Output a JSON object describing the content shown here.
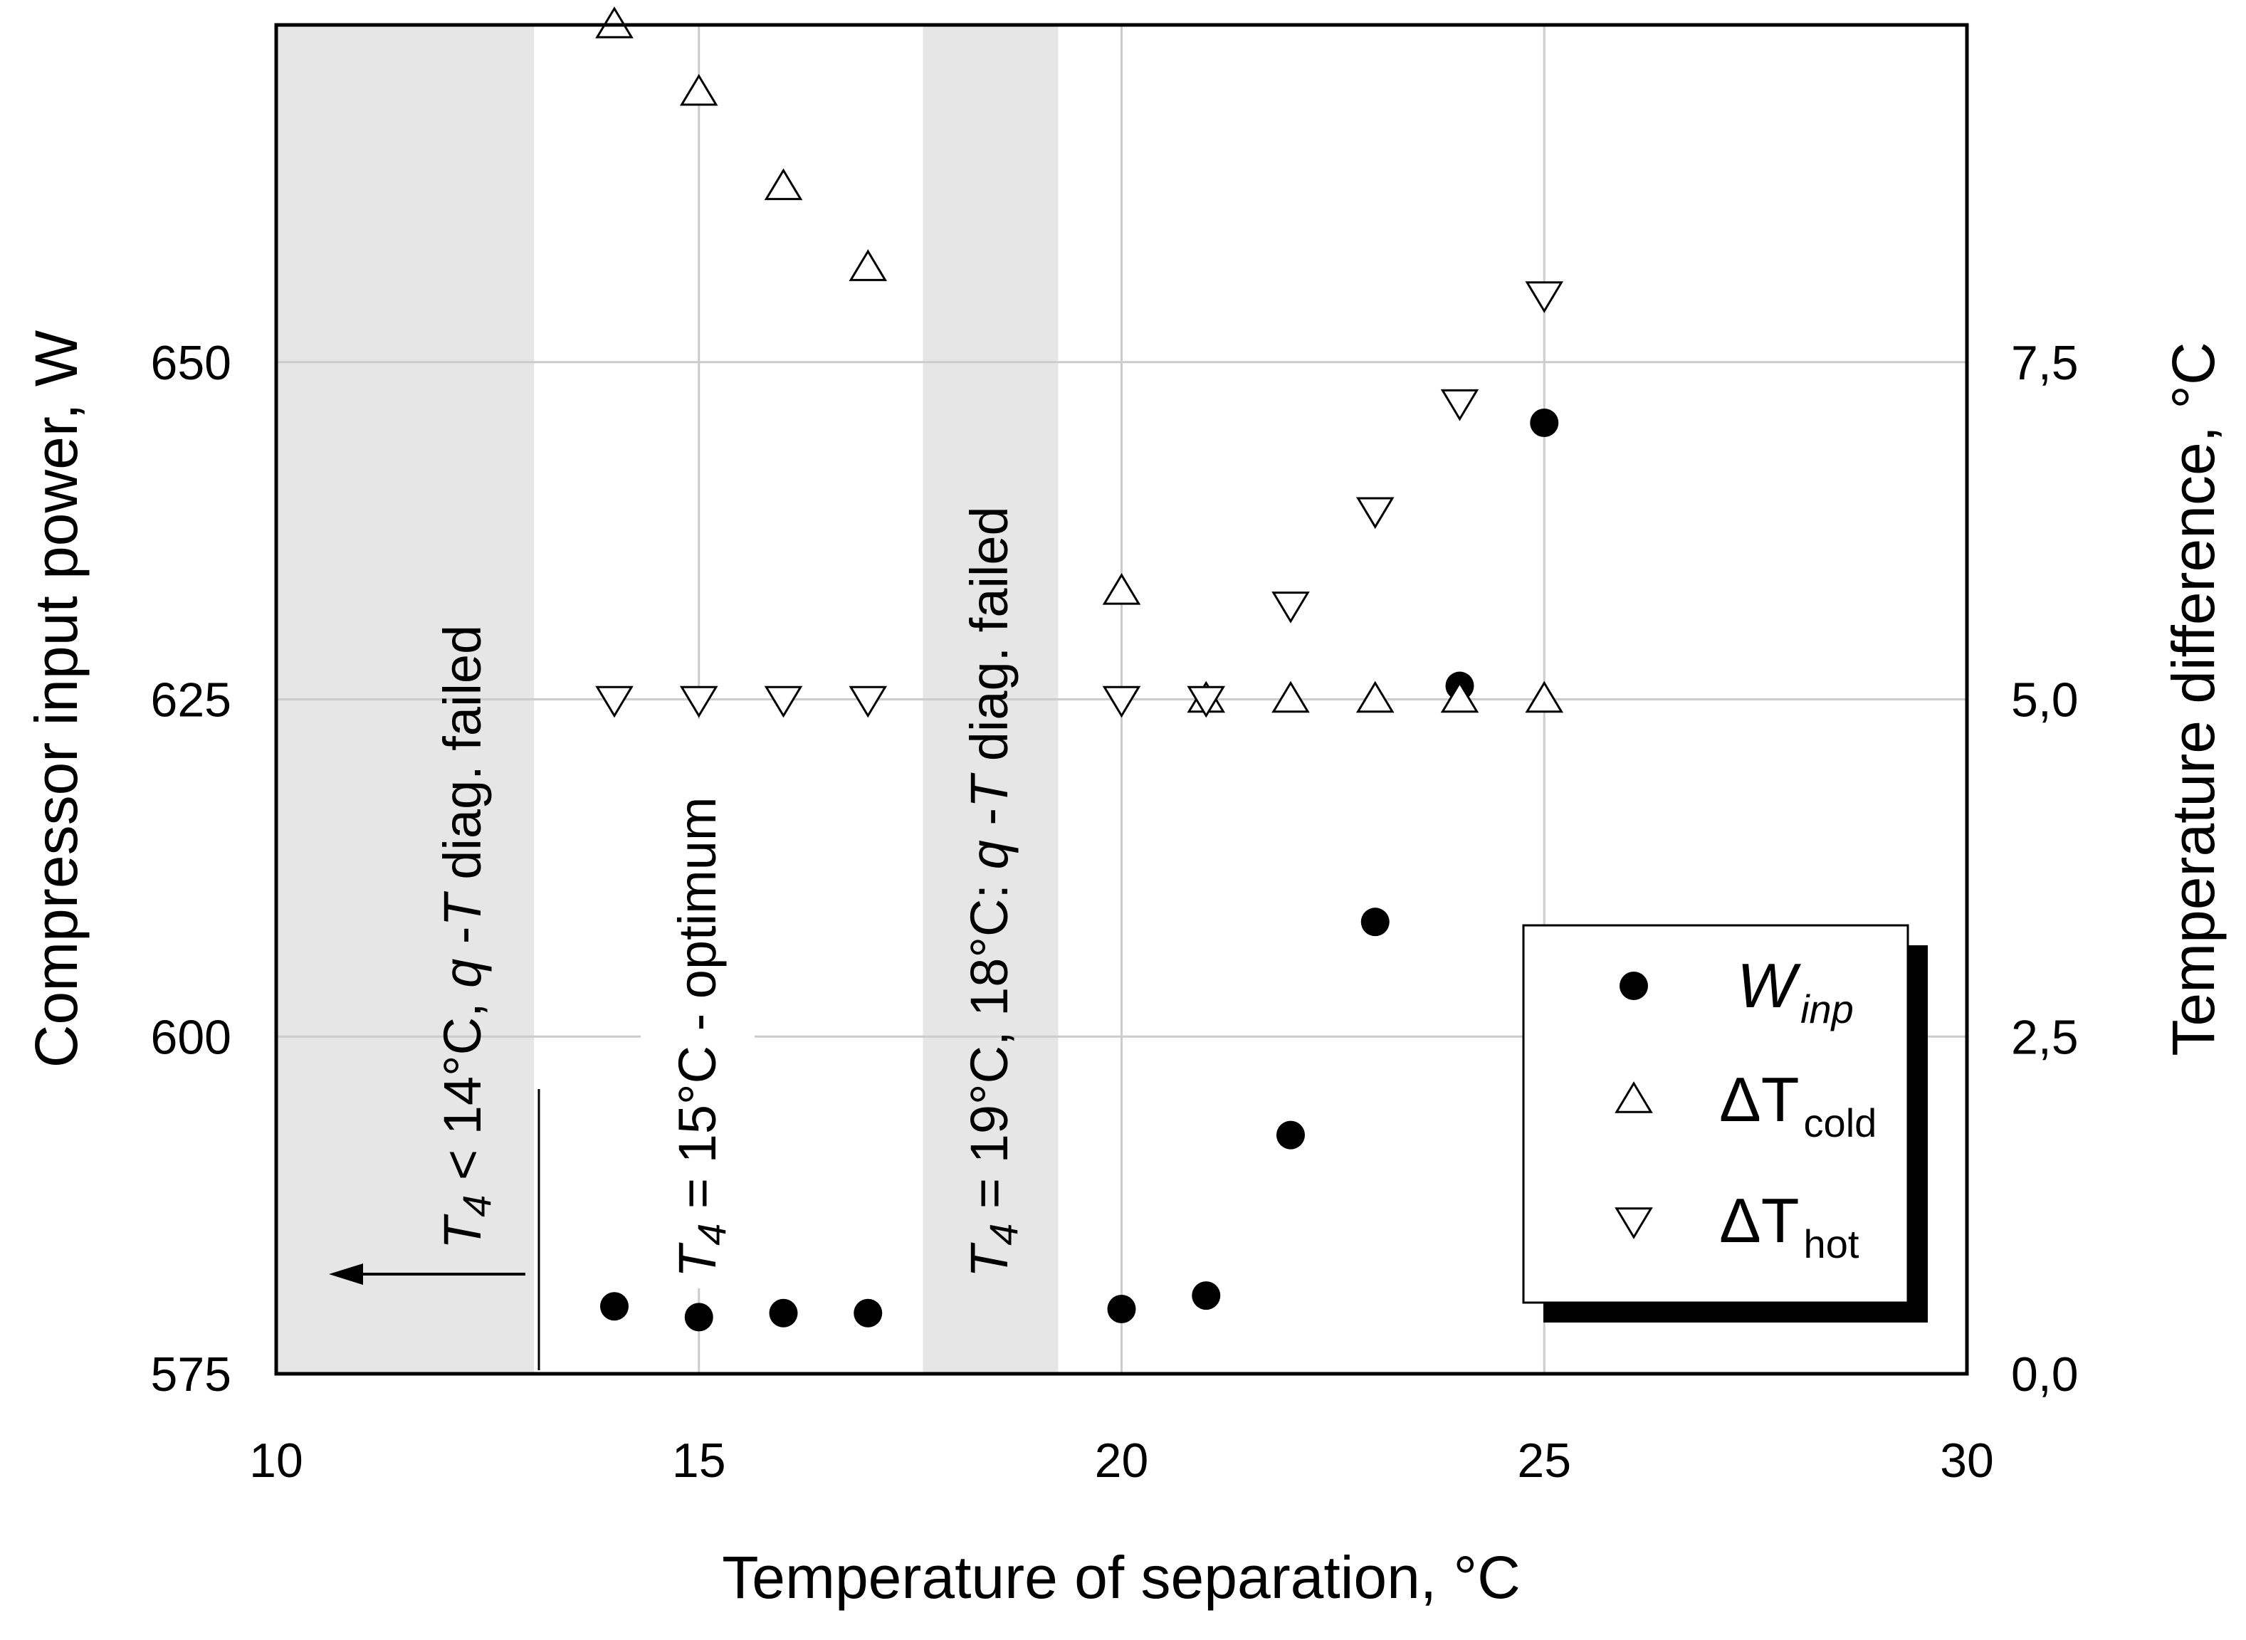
{
  "chart_data": {
    "type": "scatter",
    "xlabel": "Temperature of separation, °C",
    "ylabel_left": "Compressor input power, W",
    "ylabel_right": "Temperature difference, °C",
    "xlim": [
      10,
      30
    ],
    "ylim_left": [
      575,
      675
    ],
    "ylim_right": [
      0,
      10
    ],
    "x_ticks": [
      "10",
      "15",
      "20",
      "25",
      "30"
    ],
    "y_left_ticks": [
      "575",
      "600",
      "625",
      "650"
    ],
    "y_right_ticks": [
      "0,0",
      "2,5",
      "5,0",
      "7,5"
    ],
    "series": [
      {
        "name": "W_inp",
        "legend_main": "W",
        "legend_sub": "inp",
        "axis": "left",
        "marker": "filled-circle",
        "x": [
          14,
          15,
          16,
          17,
          20,
          21,
          22,
          23,
          24,
          25
        ],
        "y": [
          580.0,
          579.2,
          579.5,
          579.5,
          579.8,
          580.8,
          592.7,
          608.5,
          626.0,
          645.5
        ]
      },
      {
        "name": "ΔT_cold",
        "legend_main": "ΔT",
        "legend_sub": "cold",
        "axis": "right",
        "marker": "triangle-up",
        "x": [
          14,
          15,
          16,
          17,
          20,
          21,
          22,
          23,
          24,
          25
        ],
        "y": [
          10.0,
          9.5,
          8.8,
          8.2,
          5.8,
          5.0,
          5.0,
          5.0,
          5.0,
          5.0
        ]
      },
      {
        "name": "ΔT_hot",
        "legend_main": "ΔT",
        "legend_sub": "hot",
        "axis": "right",
        "marker": "triangle-down",
        "x": [
          14,
          15,
          16,
          17,
          20,
          21,
          22,
          23,
          24,
          25
        ],
        "y": [
          5.0,
          5.0,
          5.0,
          5.0,
          5.0,
          5.0,
          5.7,
          6.4,
          7.2,
          8.0
        ]
      }
    ],
    "shaded_regions": [
      {
        "from": 10,
        "to": 13.05,
        "color": "#e6e6e6"
      },
      {
        "from": 17.65,
        "to": 19.25,
        "color": "#e6e6e6"
      }
    ],
    "annotations": {
      "a1": {
        "prefix": "T",
        "sub": "4",
        "text": " < 14°C, ",
        "q": "q",
        "dash": " -",
        "Tb": "T",
        "rest": " diag. failed"
      },
      "a2": {
        "prefix": "T",
        "sub": "4",
        "text": " = 15°C - optimum"
      },
      "a3": {
        "prefix": "T",
        "sub": "4",
        "text": " = 19°C, 18°C: ",
        "q": "q",
        "dash": " -",
        "Tb": "T",
        "rest": " diag. failed"
      }
    },
    "grid": true,
    "legend_position": "lower-right"
  }
}
